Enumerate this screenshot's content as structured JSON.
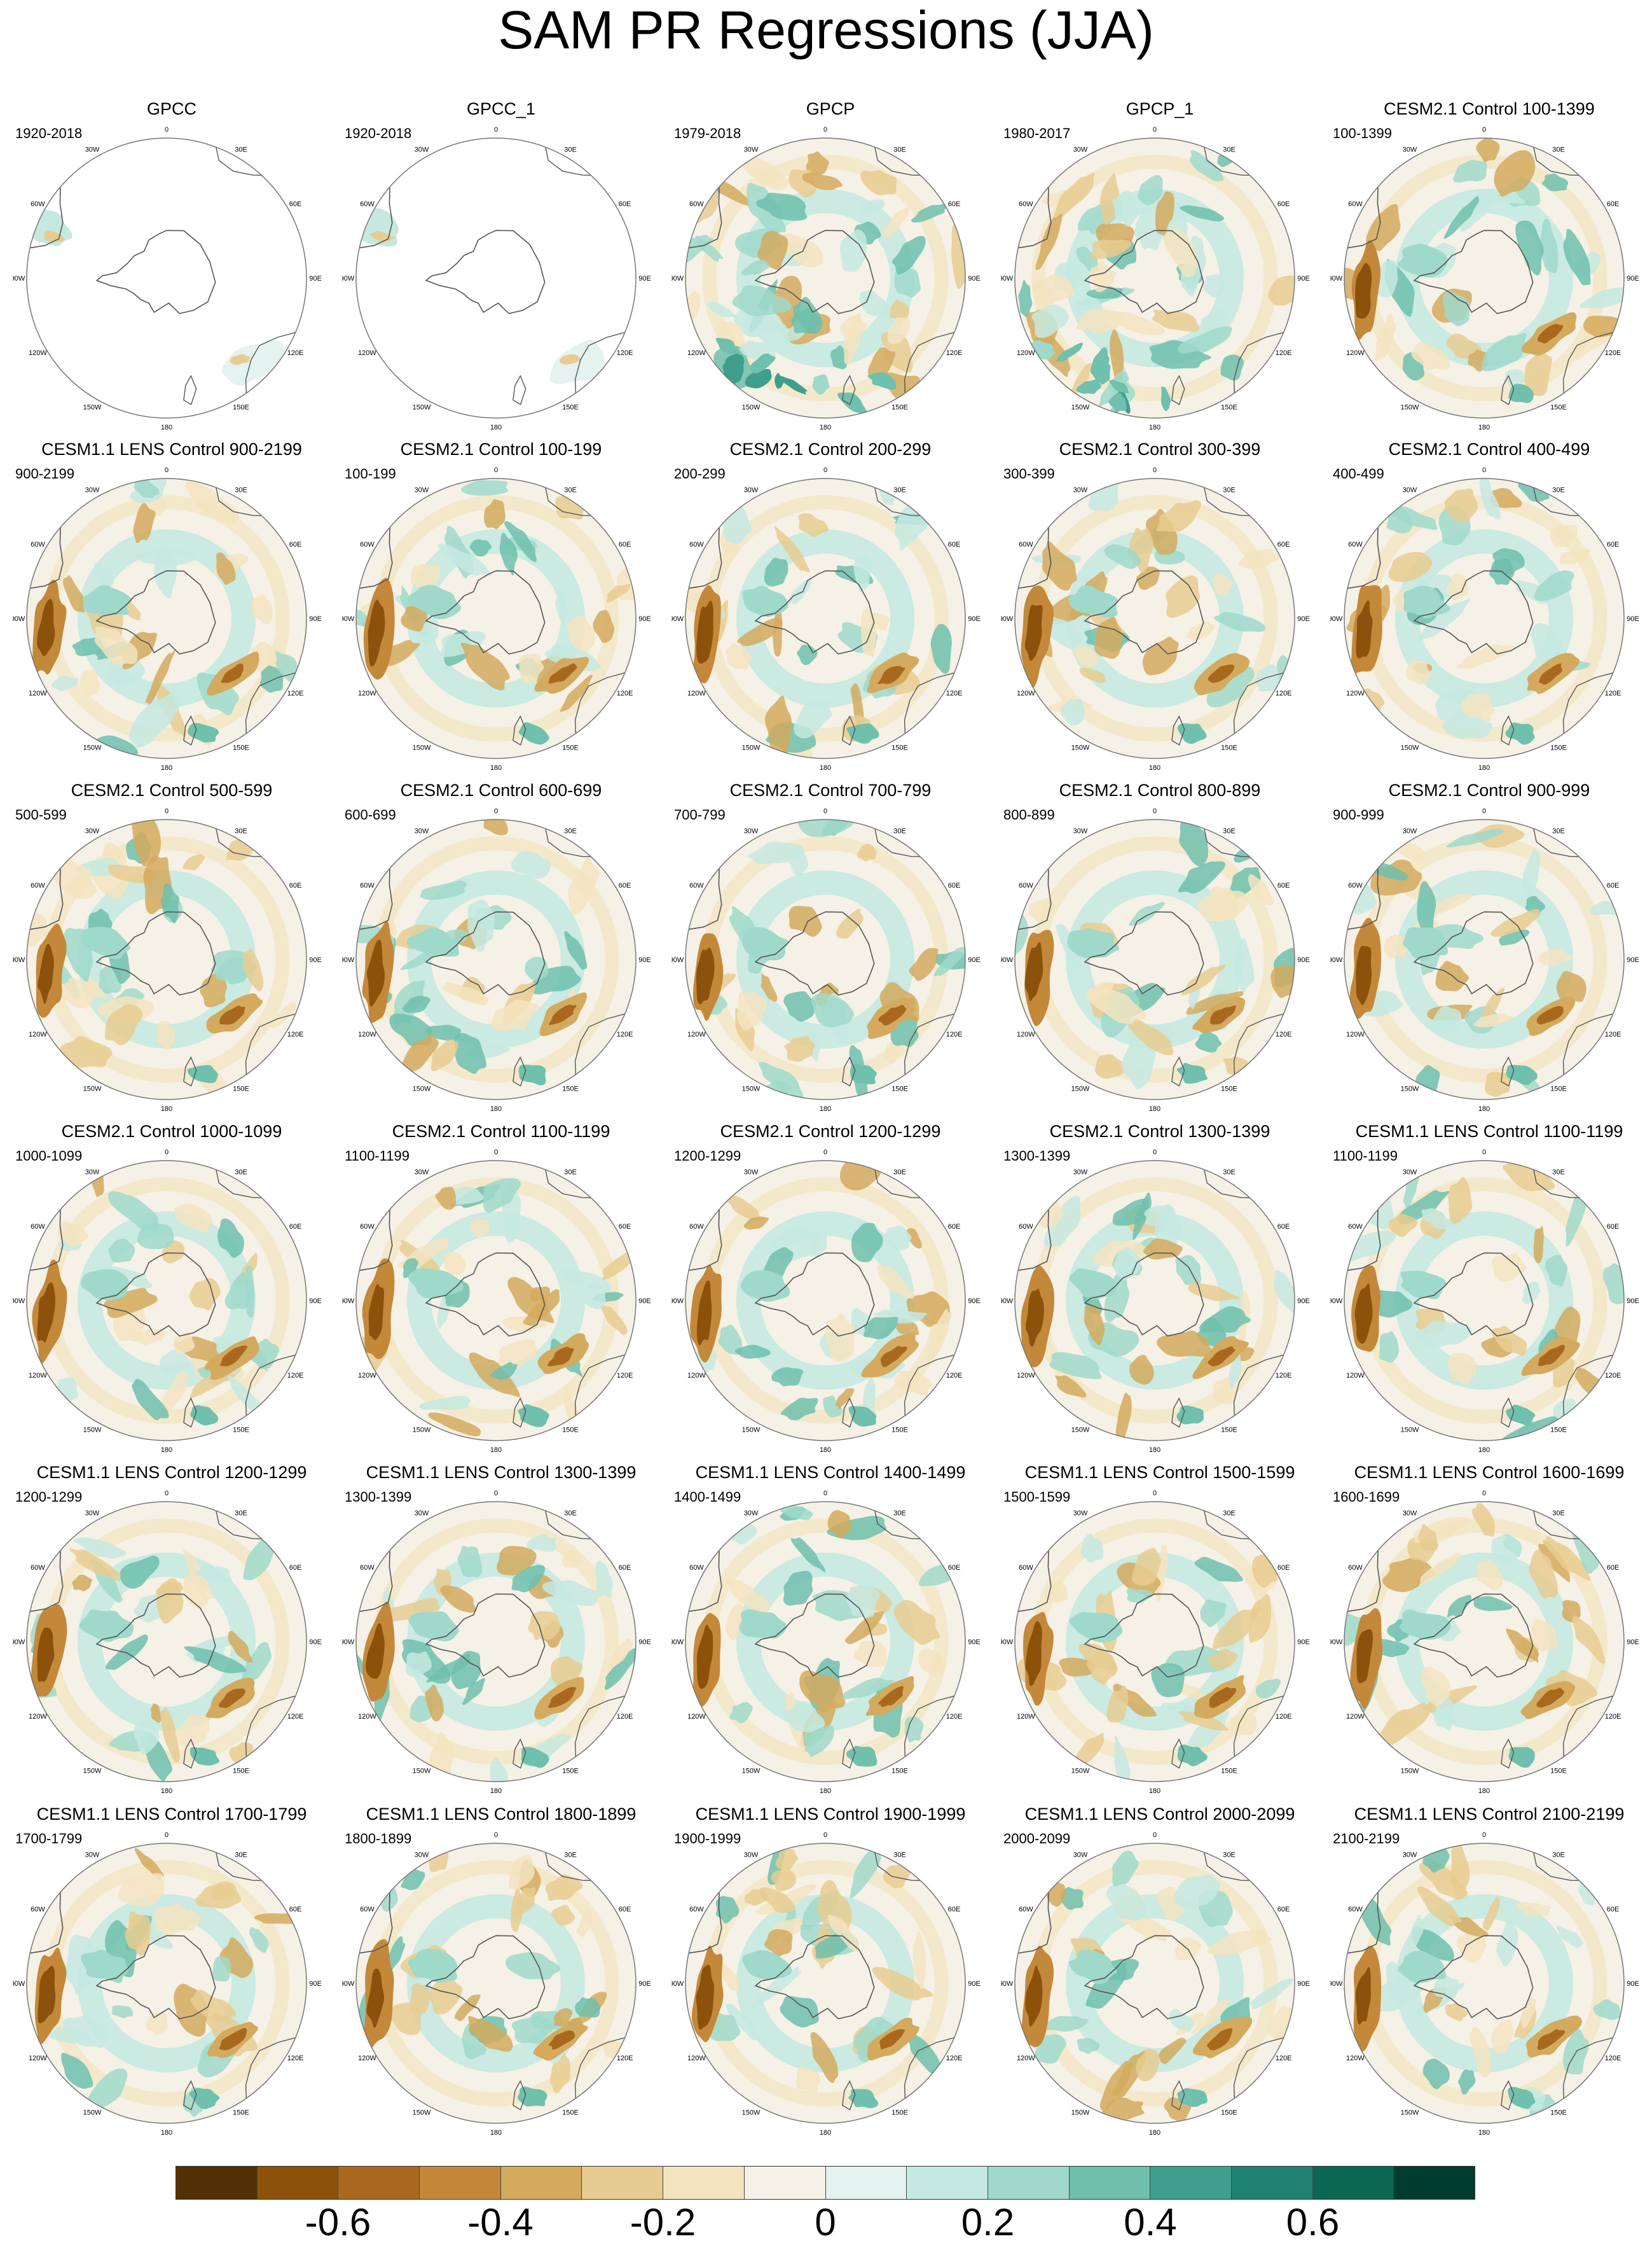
{
  "title": "SAM PR Regressions (JJA)",
  "longitude_labels": [
    "0",
    "30E",
    "60E",
    "90E",
    "120E",
    "150E",
    "180",
    "150W",
    "120W",
    "90W",
    "60W",
    "30W"
  ],
  "panels": [
    {
      "title": "GPCC",
      "years": "1920-2018",
      "style": "obs_land"
    },
    {
      "title": "GPCC_1",
      "years": "1920-2018",
      "style": "obs_land"
    },
    {
      "title": "GPCP",
      "years": "1979-2018",
      "style": "obs"
    },
    {
      "title": "GPCP_1",
      "years": "1980-2017",
      "style": "obs"
    },
    {
      "title": "CESM2.1 Control 100-1399",
      "years": "100-1399",
      "style": "model"
    },
    {
      "title": "CESM1.1 LENS Control 900-2199",
      "years": "900-2199",
      "style": "model"
    },
    {
      "title": "CESM2.1 Control 100-199",
      "years": "100-199",
      "style": "model"
    },
    {
      "title": "CESM2.1 Control 200-299",
      "years": "200-299",
      "style": "model"
    },
    {
      "title": "CESM2.1 Control 300-399",
      "years": "300-399",
      "style": "model"
    },
    {
      "title": "CESM2.1 Control 400-499",
      "years": "400-499",
      "style": "model"
    },
    {
      "title": "CESM2.1 Control 500-599",
      "years": "500-599",
      "style": "model"
    },
    {
      "title": "CESM2.1 Control 600-699",
      "years": "600-699",
      "style": "model"
    },
    {
      "title": "CESM2.1 Control 700-799",
      "years": "700-799",
      "style": "model"
    },
    {
      "title": "CESM2.1 Control 800-899",
      "years": "800-899",
      "style": "model"
    },
    {
      "title": "CESM2.1 Control 900-999",
      "years": "900-999",
      "style": "model"
    },
    {
      "title": "CESM2.1 Control 1000-1099",
      "years": "1000-1099",
      "style": "model"
    },
    {
      "title": "CESM2.1 Control 1100-1199",
      "years": "1100-1199",
      "style": "model"
    },
    {
      "title": "CESM2.1 Control 1200-1299",
      "years": "1200-1299",
      "style": "model"
    },
    {
      "title": "CESM2.1 Control 1300-1399",
      "years": "1300-1399",
      "style": "model"
    },
    {
      "title": "CESM1.1 LENS Control 1100-1199",
      "years": "1100-1199",
      "style": "model"
    },
    {
      "title": "CESM1.1 LENS Control 1200-1299",
      "years": "1200-1299",
      "style": "model"
    },
    {
      "title": "CESM1.1 LENS Control 1300-1399",
      "years": "1300-1399",
      "style": "model"
    },
    {
      "title": "CESM1.1 LENS Control 1400-1499",
      "years": "1400-1499",
      "style": "model"
    },
    {
      "title": "CESM1.1 LENS Control 1500-1599",
      "years": "1500-1599",
      "style": "model"
    },
    {
      "title": "CESM1.1 LENS Control 1600-1699",
      "years": "1600-1699",
      "style": "model"
    },
    {
      "title": "CESM1.1 LENS Control 1700-1799",
      "years": "1700-1799",
      "style": "model"
    },
    {
      "title": "CESM1.1 LENS Control 1800-1899",
      "years": "1800-1899",
      "style": "model"
    },
    {
      "title": "CESM1.1 LENS Control 1900-1999",
      "years": "1900-1999",
      "style": "model"
    },
    {
      "title": "CESM1.1 LENS Control 2000-2099",
      "years": "2000-2099",
      "style": "model"
    },
    {
      "title": "CESM1.1 LENS Control 2100-2199",
      "years": "2100-2199",
      "style": "model"
    }
  ],
  "colorbar": {
    "colors": [
      "#543005",
      "#8c510a",
      "#a8691f",
      "#c4883a",
      "#d4aa5e",
      "#e7cc91",
      "#f3e4bf",
      "#f5f1e6",
      "#e4f2f0",
      "#c5e9e1",
      "#9fd9ca",
      "#6fc0ad",
      "#3f9f8c",
      "#1f8270",
      "#0b6653",
      "#013c30"
    ],
    "tick_labels": [
      "-0.6",
      "-0.4",
      "-0.2",
      "0",
      "0.2",
      "0.4",
      "0.6"
    ],
    "tick_values": [
      -0.6,
      -0.4,
      -0.2,
      0,
      0.2,
      0.4,
      0.6
    ],
    "range": [
      -0.8,
      0.8
    ]
  }
}
